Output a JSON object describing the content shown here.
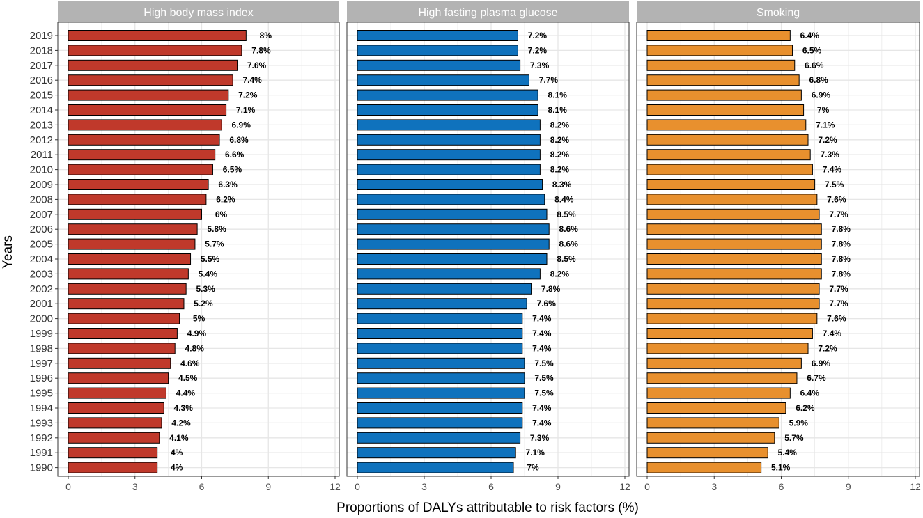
{
  "chart_data": {
    "type": "bar",
    "orientation": "horizontal",
    "xlabel": "Proportions of DALYs attributable to risk factors (%)",
    "ylabel": "Years",
    "xlim": [
      0,
      12
    ],
    "xticks": [
      "0",
      "3",
      "6",
      "9",
      "12"
    ],
    "categories": [
      "2019",
      "2018",
      "2017",
      "2016",
      "2015",
      "2014",
      "2013",
      "2012",
      "2011",
      "2010",
      "2009",
      "2008",
      "2007",
      "2006",
      "2005",
      "2004",
      "2003",
      "2002",
      "2001",
      "2000",
      "1999",
      "1998",
      "1997",
      "1996",
      "1995",
      "1994",
      "1993",
      "1992",
      "1991",
      "1990"
    ],
    "series": [
      {
        "name": "High body mass index",
        "color": "#c0392b",
        "values": [
          8.0,
          7.8,
          7.6,
          7.4,
          7.2,
          7.1,
          6.9,
          6.8,
          6.6,
          6.5,
          6.3,
          6.2,
          6.0,
          5.8,
          5.7,
          5.5,
          5.4,
          5.3,
          5.2,
          5.0,
          4.9,
          4.8,
          4.6,
          4.5,
          4.4,
          4.3,
          4.2,
          4.1,
          4.0,
          4.0
        ],
        "labels": [
          "8%",
          "7.8%",
          "7.6%",
          "7.4%",
          "7.2%",
          "7.1%",
          "6.9%",
          "6.8%",
          "6.6%",
          "6.5%",
          "6.3%",
          "6.2%",
          "6%",
          "5.8%",
          "5.7%",
          "5.5%",
          "5.4%",
          "5.3%",
          "5.2%",
          "5%",
          "4.9%",
          "4.8%",
          "4.6%",
          "4.5%",
          "4.4%",
          "4.3%",
          "4.2%",
          "4.1%",
          "4%",
          "4%"
        ]
      },
      {
        "name": "High fasting plasma glucose",
        "color": "#0f72bd",
        "values": [
          7.2,
          7.2,
          7.3,
          7.7,
          8.1,
          8.1,
          8.2,
          8.2,
          8.2,
          8.2,
          8.3,
          8.4,
          8.5,
          8.6,
          8.6,
          8.5,
          8.2,
          7.8,
          7.6,
          7.4,
          7.4,
          7.4,
          7.5,
          7.5,
          7.5,
          7.4,
          7.4,
          7.3,
          7.1,
          7.0
        ],
        "labels": [
          "7.2%",
          "7.2%",
          "7.3%",
          "7.7%",
          "8.1%",
          "8.1%",
          "8.2%",
          "8.2%",
          "8.2%",
          "8.2%",
          "8.3%",
          "8.4%",
          "8.5%",
          "8.6%",
          "8.6%",
          "8.5%",
          "8.2%",
          "7.8%",
          "7.6%",
          "7.4%",
          "7.4%",
          "7.4%",
          "7.5%",
          "7.5%",
          "7.5%",
          "7.4%",
          "7.4%",
          "7.3%",
          "7.1%",
          "7%"
        ]
      },
      {
        "name": "Smoking",
        "color": "#e8902e",
        "values": [
          6.4,
          6.5,
          6.6,
          6.8,
          6.9,
          7.0,
          7.1,
          7.2,
          7.3,
          7.4,
          7.5,
          7.6,
          7.7,
          7.8,
          7.8,
          7.8,
          7.8,
          7.7,
          7.7,
          7.6,
          7.4,
          7.2,
          6.9,
          6.7,
          6.4,
          6.2,
          5.9,
          5.7,
          5.4,
          5.1
        ],
        "labels": [
          "6.4%",
          "6.5%",
          "6.6%",
          "6.8%",
          "6.9%",
          "7%",
          "7.1%",
          "7.2%",
          "7.3%",
          "7.4%",
          "7.5%",
          "7.6%",
          "7.7%",
          "7.8%",
          "7.8%",
          "7.8%",
          "7.8%",
          "7.7%",
          "7.7%",
          "7.6%",
          "7.4%",
          "7.2%",
          "6.9%",
          "6.7%",
          "6.4%",
          "6.2%",
          "5.9%",
          "5.7%",
          "5.4%",
          "5.1%"
        ]
      }
    ]
  }
}
